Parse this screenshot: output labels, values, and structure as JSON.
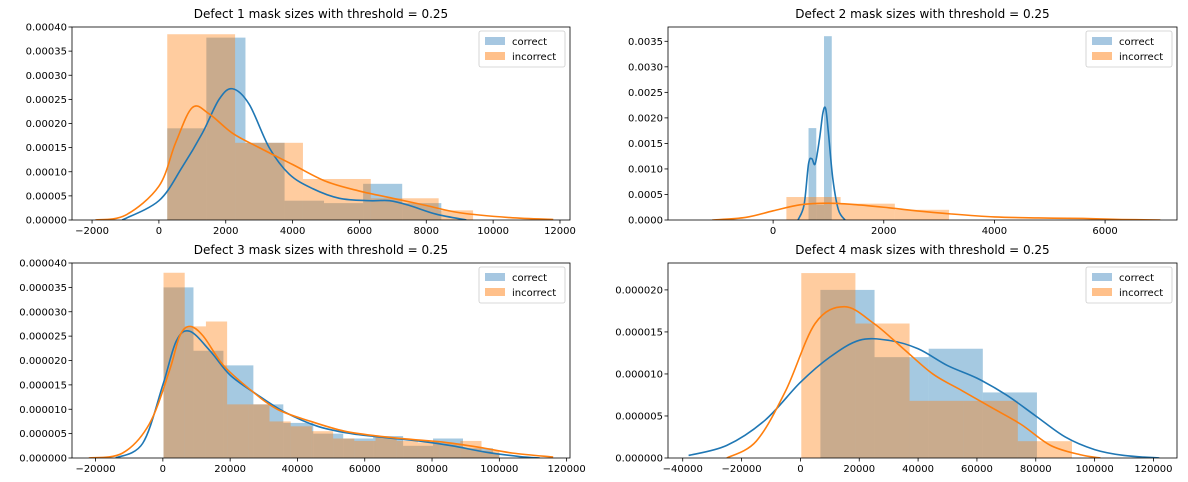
{
  "chart_data": [
    {
      "type": "histogram",
      "title": "Defect 1 mask sizes with threshold = 0.25",
      "xlim": [
        -2600,
        12300
      ],
      "ylim": [
        0,
        0.0004
      ],
      "xticks": [
        -2000,
        0,
        2000,
        4000,
        6000,
        8000,
        10000,
        12000
      ],
      "xtick_labels": [
        "−2000",
        "0",
        "2000",
        "4000",
        "6000",
        "8000",
        "10000",
        "12000"
      ],
      "yticks": [
        0,
        5e-05,
        0.0001,
        0.00015,
        0.0002,
        0.00025,
        0.0003,
        0.00035,
        0.0004
      ],
      "ytick_labels": [
        "0.00000",
        "0.00005",
        "0.00010",
        "0.00015",
        "0.00020",
        "0.00025",
        "0.00030",
        "0.00035",
        "0.00040"
      ],
      "legend": {
        "position": "top-right",
        "entries": [
          "correct",
          "incorrect"
        ]
      },
      "series": [
        {
          "name": "correct",
          "color": "#1f77b4",
          "bins": [
            [
              250,
              1420,
              0.00019
            ],
            [
              1420,
              2590,
              0.000378
            ],
            [
              2590,
              3760,
              0.00016
            ],
            [
              3760,
              4940,
              4e-05
            ],
            [
              4940,
              6110,
              3.5e-05
            ],
            [
              6110,
              7280,
              7.5e-05
            ],
            [
              7280,
              8450,
              3.5e-05
            ]
          ],
          "kde": [
            [
              -1100,
              0
            ],
            [
              0,
              4e-05
            ],
            [
              700,
              0.00011
            ],
            [
              1300,
              0.00018
            ],
            [
              1800,
              0.00025
            ],
            [
              2200,
              0.000272
            ],
            [
              2700,
              0.00024
            ],
            [
              3300,
              0.00015
            ],
            [
              3900,
              9.5e-05
            ],
            [
              4600,
              6.5e-05
            ],
            [
              5400,
              4.5e-05
            ],
            [
              6300,
              4e-05
            ],
            [
              6900,
              4e-05
            ],
            [
              7500,
              3e-05
            ],
            [
              8300,
              1.2e-05
            ],
            [
              9200,
              0
            ]
          ]
        },
        {
          "name": "incorrect",
          "color": "#ff7f0e",
          "bins": [
            [
              250,
              2280,
              0.000385
            ],
            [
              2280,
              4310,
              0.00016
            ],
            [
              4310,
              6340,
              8.5e-05
            ],
            [
              6340,
              8370,
              4.5e-05
            ],
            [
              8370,
              9400,
              2e-05
            ]
          ],
          "kde": [
            [
              -1900,
              0
            ],
            [
              -1000,
              1e-05
            ],
            [
              0,
              7e-05
            ],
            [
              500,
              0.00016
            ],
            [
              1000,
              0.000233
            ],
            [
              1500,
              0.00022
            ],
            [
              2200,
              0.00018
            ],
            [
              3000,
              0.00015
            ],
            [
              4000,
              0.000115
            ],
            [
              5000,
              8e-05
            ],
            [
              6000,
              6e-05
            ],
            [
              7000,
              4.5e-05
            ],
            [
              8000,
              3e-05
            ],
            [
              9000,
              1.5e-05
            ],
            [
              10500,
              5e-06
            ],
            [
              11800,
              1e-06
            ]
          ]
        }
      ]
    },
    {
      "type": "histogram",
      "title": "Defect 2 mask sizes with threshold = 0.25",
      "xlim": [
        -1900,
        7300
      ],
      "ylim": [
        0,
        0.00378
      ],
      "xticks": [
        0,
        2000,
        4000,
        6000
      ],
      "xtick_labels": [
        "0",
        "2000",
        "4000",
        "6000"
      ],
      "yticks": [
        0,
        0.0005,
        0.001,
        0.0015,
        0.002,
        0.0025,
        0.003,
        0.0035
      ],
      "ytick_labels": [
        "0.0000",
        "0.0005",
        "0.0010",
        "0.0015",
        "0.0020",
        "0.0025",
        "0.0030",
        "0.0035"
      ],
      "legend": {
        "position": "top-right",
        "entries": [
          "correct",
          "incorrect"
        ]
      },
      "series": [
        {
          "name": "correct",
          "color": "#1f77b4",
          "bins": [
            [
              640,
              780,
              0.0018
            ],
            [
              780,
              920,
              0.0003
            ],
            [
              920,
              1060,
              0.0036
            ]
          ],
          "kde": [
            [
              450,
              0
            ],
            [
              560,
              0.0003
            ],
            [
              640,
              0.0011
            ],
            [
              700,
              0.0012
            ],
            [
              760,
              0.0011
            ],
            [
              840,
              0.0016
            ],
            [
              900,
              0.0021
            ],
            [
              950,
              0.00218
            ],
            [
              1000,
              0.0017
            ],
            [
              1080,
              0.0008
            ],
            [
              1180,
              0.0002
            ],
            [
              1300,
              0
            ]
          ]
        },
        {
          "name": "incorrect",
          "color": "#ff7f0e",
          "bins": [
            [
              240,
              1220,
              0.00045
            ],
            [
              1220,
              2200,
              0.00032
            ],
            [
              2200,
              3180,
              0.0002
            ]
          ],
          "kde": [
            [
              -1100,
              0
            ],
            [
              -500,
              5e-05
            ],
            [
              0,
              0.00018
            ],
            [
              500,
              0.0003
            ],
            [
              1000,
              0.00033
            ],
            [
              1500,
              0.0003
            ],
            [
              2000,
              0.00025
            ],
            [
              2500,
              0.00019
            ],
            [
              3200,
              0.00012
            ],
            [
              4000,
              6e-05
            ],
            [
              4800,
              4e-05
            ],
            [
              5600,
              3e-05
            ],
            [
              6300,
              1e-05
            ],
            [
              7000,
              0
            ]
          ]
        }
      ]
    },
    {
      "type": "histogram",
      "title": "Defect 3 mask sizes with threshold = 0.25",
      "xlim": [
        -27000,
        121000
      ],
      "ylim": [
        0,
        4e-05
      ],
      "xticks": [
        -20000,
        0,
        20000,
        40000,
        60000,
        80000,
        100000,
        120000
      ],
      "xtick_labels": [
        "−20000",
        "0",
        "20000",
        "40000",
        "60000",
        "80000",
        "100000",
        "120000"
      ],
      "yticks": [
        0,
        5e-06,
        1e-05,
        1.5e-05,
        2e-05,
        2.5e-05,
        3e-05,
        3.5e-05,
        4e-05
      ],
      "ytick_labels": [
        "0.000000",
        "0.000005",
        "0.000010",
        "0.000015",
        "0.000020",
        "0.000025",
        "0.000030",
        "0.000035",
        "0.000040"
      ],
      "legend": {
        "position": "top-right",
        "entries": [
          "correct",
          "incorrect"
        ]
      },
      "series": [
        {
          "name": "correct",
          "color": "#1f77b4",
          "bins": [
            [
              200,
              9100,
              3.5e-05
            ],
            [
              9100,
              18000,
              2.2e-05
            ],
            [
              18000,
              26900,
              1.9e-05
            ],
            [
              26900,
              35800,
              1.1e-05
            ],
            [
              35800,
              44700,
              7.2e-06
            ],
            [
              44700,
              53600,
              5e-06
            ],
            [
              53600,
              62500,
              4e-06
            ],
            [
              62500,
              71400,
              4.5e-06
            ],
            [
              71400,
              80300,
              2.5e-06
            ],
            [
              80300,
              89200,
              4e-06
            ],
            [
              89200,
              98100,
              2e-06
            ],
            [
              98100,
              100000,
              1e-06
            ]
          ],
          "kde": [
            [
              -14000,
              0
            ],
            [
              -6000,
              3e-06
            ],
            [
              0,
              1.5e-05
            ],
            [
              4000,
              2.4e-05
            ],
            [
              8000,
              2.6e-05
            ],
            [
              14000,
              2.2e-05
            ],
            [
              20000,
              1.7e-05
            ],
            [
              28000,
              1.3e-05
            ],
            [
              36000,
              9.5e-06
            ],
            [
              46000,
              6.5e-06
            ],
            [
              56000,
              5e-06
            ],
            [
              66000,
              4.2e-06
            ],
            [
              76000,
              3.5e-06
            ],
            [
              86000,
              2.5e-06
            ],
            [
              96000,
              1.2e-06
            ],
            [
              106000,
              3e-07
            ],
            [
              112000,
              0
            ]
          ]
        },
        {
          "name": "incorrect",
          "color": "#ff7f0e",
          "bins": [
            [
              200,
              6500,
              3.8e-05
            ],
            [
              6500,
              12800,
              2.7e-05
            ],
            [
              12800,
              19100,
              2.8e-05
            ],
            [
              19100,
              25400,
              1.1e-05
            ],
            [
              25400,
              31700,
              1.1e-05
            ],
            [
              31700,
              38000,
              7.5e-06
            ],
            [
              38000,
              44300,
              6.5e-06
            ],
            [
              44300,
              50600,
              5.5e-06
            ],
            [
              50600,
              56900,
              4e-06
            ],
            [
              56900,
              63200,
              3.5e-06
            ],
            [
              63200,
              69500,
              4.2e-06
            ],
            [
              69500,
              75800,
              3.5e-06
            ],
            [
              75800,
              82100,
              3.2e-06
            ],
            [
              82100,
              88400,
              3e-06
            ],
            [
              88400,
              94700,
              3.5e-06
            ],
            [
              94700,
              100000,
              1.5e-06
            ]
          ],
          "kde": [
            [
              -22000,
              0
            ],
            [
              -12000,
              1e-06
            ],
            [
              -4000,
              7e-06
            ],
            [
              2000,
              1.8e-05
            ],
            [
              5000,
              2.5e-05
            ],
            [
              8000,
              2.7e-05
            ],
            [
              12000,
              2.5e-05
            ],
            [
              18000,
              1.9e-05
            ],
            [
              26000,
              1.4e-05
            ],
            [
              34000,
              1e-05
            ],
            [
              44000,
              7.5e-06
            ],
            [
              54000,
              5.5e-06
            ],
            [
              64000,
              4.5e-06
            ],
            [
              74000,
              3.8e-06
            ],
            [
              84000,
              3.2e-06
            ],
            [
              94000,
              2.2e-06
            ],
            [
              104000,
              1e-06
            ],
            [
              116000,
              2e-07
            ]
          ]
        }
      ]
    },
    {
      "type": "histogram",
      "title": "Defect 4 mask sizes with threshold = 0.25",
      "xlim": [
        -45000,
        128000
      ],
      "ylim": [
        0,
        2.32e-05
      ],
      "xticks": [
        -40000,
        -20000,
        0,
        20000,
        40000,
        60000,
        80000,
        100000,
        120000
      ],
      "xtick_labels": [
        "−40000",
        "−20000",
        "0",
        "20000",
        "40000",
        "60000",
        "80000",
        "100000",
        "120000"
      ],
      "yticks": [
        0,
        5e-06,
        1e-05,
        1.5e-05,
        2e-05
      ],
      "ytick_labels": [
        "0.000000",
        "0.000005",
        "0.000010",
        "0.000015",
        "0.000020"
      ],
      "legend": {
        "position": "top-right",
        "entries": [
          "correct",
          "incorrect"
        ]
      },
      "series": [
        {
          "name": "correct",
          "color": "#1f77b4",
          "bins": [
            [
              6800,
              25200,
              2e-05
            ],
            [
              25200,
              43600,
              1.2e-05
            ],
            [
              43600,
              62000,
              1.3e-05
            ],
            [
              62000,
              80400,
              7.8e-06
            ]
          ],
          "kde": [
            [
              -38000,
              3e-07
            ],
            [
              -25000,
              1.5e-06
            ],
            [
              -12000,
              4.5e-06
            ],
            [
              0,
              9e-06
            ],
            [
              10000,
              1.2e-05
            ],
            [
              20000,
              1.4e-05
            ],
            [
              30000,
              1.4e-05
            ],
            [
              40000,
              1.3e-05
            ],
            [
              50000,
              1.1e-05
            ],
            [
              60000,
              9.5e-06
            ],
            [
              70000,
              7.5e-06
            ],
            [
              80000,
              5e-06
            ],
            [
              90000,
              2.5e-06
            ],
            [
              100000,
              1e-06
            ],
            [
              110000,
              3e-07
            ],
            [
              122000,
              0
            ]
          ]
        },
        {
          "name": "incorrect",
          "color": "#ff7f0e",
          "bins": [
            [
              300,
              18700,
              2.2e-05
            ],
            [
              18700,
              37100,
              1.6e-05
            ],
            [
              37100,
              55500,
              6.8e-06
            ],
            [
              55500,
              73900,
              6.8e-06
            ],
            [
              73900,
              92300,
              2e-06
            ]
          ],
          "kde": [
            [
              -25000,
              0
            ],
            [
              -15000,
              2e-06
            ],
            [
              -5000,
              8e-06
            ],
            [
              5000,
              1.6e-05
            ],
            [
              15000,
              1.8e-05
            ],
            [
              25000,
              1.6e-05
            ],
            [
              35000,
              1.3e-05
            ],
            [
              45000,
              1e-05
            ],
            [
              55000,
              8e-06
            ],
            [
              65000,
              6e-06
            ],
            [
              75000,
              4e-06
            ],
            [
              85000,
              1.5e-06
            ],
            [
              95000,
              4e-07
            ],
            [
              102000,
              0
            ]
          ]
        }
      ]
    }
  ]
}
